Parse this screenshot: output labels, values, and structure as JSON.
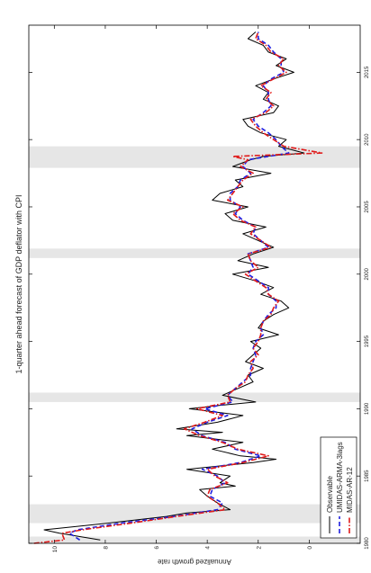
{
  "chart_data": {
    "type": "line",
    "orientation": "rotated-90-clockwise",
    "title": "1-quarter ahead forecast of GDP deflator with CPI",
    "ylabel": "Annualized growth rate",
    "xlabel": "",
    "xlim": [
      1980,
      2018.5
    ],
    "ylim": [
      -2,
      11
    ],
    "x_ticks": [
      1980,
      1985,
      1990,
      1995,
      2000,
      2005,
      2010,
      2015
    ],
    "y_ticks": [
      0,
      2,
      4,
      6,
      8,
      10
    ],
    "grid": false,
    "legend_position": "bottom-left",
    "recessions": [
      [
        1980.0,
        1980.5
      ],
      [
        1981.5,
        1982.9
      ],
      [
        1990.5,
        1991.2
      ],
      [
        2001.2,
        2001.9
      ],
      [
        2007.9,
        2009.5
      ]
    ],
    "series": [
      {
        "name": "Observable",
        "color": "#000000",
        "dash": "solid",
        "x": [
          1980.25,
          1980.75,
          1981.0,
          1981.5,
          1982.0,
          1982.25,
          1982.5,
          1983.0,
          1983.5,
          1984.0,
          1984.25,
          1984.5,
          1985.0,
          1985.5,
          1986.0,
          1986.25,
          1986.5,
          1987.0,
          1987.5,
          1988.0,
          1988.25,
          1988.5,
          1989.0,
          1989.5,
          1990.0,
          1990.25,
          1990.5,
          1991.0,
          1991.5,
          1992.0,
          1992.5,
          1993.0,
          1993.5,
          1994.0,
          1994.5,
          1995.0,
          1995.5,
          1996.0,
          1996.5,
          1997.0,
          1997.5,
          1998.0,
          1998.5,
          1999.0,
          1999.5,
          2000.0,
          2000.5,
          2001.0,
          2001.5,
          2002.0,
          2002.5,
          2003.0,
          2003.5,
          2004.0,
          2004.5,
          2005.0,
          2005.5,
          2006.0,
          2006.5,
          2007.0,
          2007.5,
          2008.0,
          2008.5,
          2008.75,
          2009.0,
          2009.5,
          2010.0,
          2010.5,
          2011.0,
          2011.5,
          2012.0,
          2012.5,
          2013.0,
          2013.5,
          2014.0,
          2014.5,
          2015.0,
          2015.5,
          2016.0,
          2016.5,
          2017.0,
          2017.5,
          2018.0
        ],
        "y": [
          8.2,
          9.8,
          10.4,
          7.9,
          5.6,
          4.8,
          3.1,
          3.6,
          4.0,
          4.3,
          2.9,
          3.5,
          3.1,
          4.8,
          2.2,
          1.3,
          2.7,
          3.8,
          2.6,
          4.8,
          3.4,
          5.2,
          3.6,
          2.6,
          4.7,
          3.5,
          2.1,
          3.4,
          2.8,
          2.2,
          2.4,
          1.8,
          2.5,
          2.2,
          1.9,
          2.3,
          1.2,
          2.0,
          1.8,
          1.4,
          0.8,
          1.1,
          1.9,
          1.4,
          2.1,
          3.0,
          1.6,
          2.8,
          2.2,
          1.4,
          2.0,
          2.6,
          1.7,
          3.0,
          3.3,
          2.4,
          3.8,
          3.5,
          2.6,
          2.9,
          1.5,
          3.0,
          2.3,
          1.8,
          0.2,
          1.2,
          0.9,
          1.9,
          2.4,
          2.6,
          1.4,
          1.2,
          1.8,
          1.6,
          2.1,
          1.4,
          0.6,
          1.3,
          0.9,
          1.6,
          1.8,
          2.4,
          2.1
        ]
      },
      {
        "name": "UMIDAS-ARMA-3lags",
        "color": "#1f1fe0",
        "dash": "dashed",
        "x": [
          1980.25,
          1980.75,
          1981.0,
          1981.5,
          1982.0,
          1982.5,
          1983.0,
          1983.5,
          1984.0,
          1984.5,
          1985.0,
          1985.5,
          1986.0,
          1986.5,
          1987.0,
          1987.5,
          1988.0,
          1988.5,
          1989.0,
          1989.5,
          1990.0,
          1990.5,
          1991.0,
          1991.5,
          1992.0,
          1992.5,
          1993.0,
          1993.5,
          1994.0,
          1994.5,
          1995.0,
          1995.5,
          1996.0,
          1996.5,
          1997.0,
          1997.5,
          1998.0,
          1998.5,
          1999.0,
          1999.5,
          2000.0,
          2000.5,
          2001.0,
          2001.5,
          2002.0,
          2002.5,
          2003.0,
          2003.5,
          2004.0,
          2004.5,
          2005.0,
          2005.5,
          2006.0,
          2006.5,
          2007.0,
          2007.5,
          2008.0,
          2008.5,
          2009.0,
          2009.5,
          2010.0,
          2010.5,
          2011.0,
          2011.5,
          2012.0,
          2012.5,
          2013.0,
          2013.5,
          2014.0,
          2014.5,
          2015.0,
          2015.5,
          2016.0,
          2016.5,
          2017.0,
          2017.5,
          2018.0
        ],
        "y": [
          9.0,
          9.4,
          9.1,
          7.4,
          5.3,
          3.6,
          3.4,
          3.9,
          3.8,
          3.3,
          3.6,
          4.2,
          2.7,
          1.9,
          2.9,
          3.3,
          4.2,
          4.6,
          4.0,
          3.2,
          4.1,
          3.0,
          3.2,
          2.9,
          2.6,
          2.3,
          2.3,
          2.2,
          2.1,
          2.2,
          2.1,
          1.8,
          1.9,
          1.8,
          1.6,
          1.3,
          1.3,
          1.6,
          1.6,
          2.0,
          2.4,
          2.2,
          2.3,
          2.4,
          1.6,
          1.9,
          2.2,
          2.1,
          2.6,
          2.9,
          2.7,
          3.1,
          3.1,
          2.8,
          2.7,
          2.3,
          2.6,
          2.4,
          0.8,
          1.1,
          1.3,
          1.6,
          2.0,
          2.2,
          1.8,
          1.5,
          1.6,
          1.6,
          1.8,
          1.5,
          1.0,
          1.1,
          1.1,
          1.4,
          1.6,
          2.0,
          2.0
        ]
      },
      {
        "name": "MIDAS-AR-12",
        "color": "#e01b1b",
        "dash": "dashdot",
        "x": [
          1980.0,
          1980.25,
          1980.75,
          1981.0,
          1981.5,
          1982.0,
          1982.5,
          1983.0,
          1983.5,
          1984.0,
          1984.5,
          1985.0,
          1985.5,
          1986.0,
          1986.5,
          1987.0,
          1987.5,
          1988.0,
          1988.5,
          1989.0,
          1989.5,
          1990.0,
          1990.5,
          1991.0,
          1991.5,
          1992.0,
          1992.5,
          1993.0,
          1993.5,
          1994.0,
          1994.5,
          1995.0,
          1995.5,
          1996.0,
          1996.5,
          1997.0,
          1997.5,
          1998.0,
          1998.5,
          1999.0,
          1999.5,
          2000.0,
          2000.5,
          2001.0,
          2001.5,
          2002.0,
          2002.5,
          2003.0,
          2003.5,
          2004.0,
          2004.5,
          2005.0,
          2005.5,
          2006.0,
          2006.5,
          2007.0,
          2007.5,
          2008.0,
          2008.5,
          2008.75,
          2009.0,
          2009.5,
          2010.0,
          2010.5,
          2011.0,
          2011.5,
          2012.0,
          2012.5,
          2013.0,
          2013.5,
          2014.0,
          2014.5,
          2015.0,
          2015.5,
          2016.0,
          2016.5,
          2017.0,
          2017.5,
          2018.0
        ],
        "y": [
          10.8,
          9.6,
          9.7,
          8.9,
          7.0,
          5.2,
          3.3,
          3.6,
          4.0,
          3.9,
          3.2,
          3.7,
          4.0,
          2.6,
          1.6,
          2.8,
          3.4,
          4.3,
          4.9,
          4.1,
          3.4,
          4.4,
          3.1,
          3.2,
          2.9,
          2.5,
          2.4,
          2.2,
          2.3,
          2.0,
          2.2,
          2.0,
          1.9,
          1.9,
          1.8,
          1.5,
          1.4,
          1.2,
          1.6,
          1.7,
          2.1,
          2.5,
          2.0,
          2.3,
          2.4,
          1.5,
          1.9,
          2.3,
          2.1,
          2.7,
          3.0,
          2.6,
          3.2,
          3.0,
          2.8,
          2.6,
          2.2,
          2.7,
          2.4,
          3.0,
          -0.5,
          1.0,
          1.4,
          1.8,
          2.1,
          2.3,
          1.7,
          1.4,
          1.7,
          1.5,
          1.9,
          1.4,
          0.9,
          1.2,
          1.0,
          1.5,
          1.7,
          2.1,
          2.0
        ]
      }
    ]
  }
}
